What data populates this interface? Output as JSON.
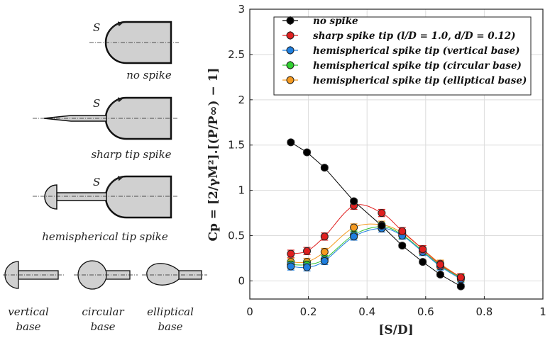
{
  "schematics": {
    "s_label": "S",
    "captions": {
      "no_spike": "no spike",
      "sharp": "sharp tip spike",
      "hemi": "hemispherical tip spike",
      "vertical": [
        "vertical",
        "base"
      ],
      "circular": [
        "circular",
        "base"
      ],
      "elliptical": [
        "elliptical",
        "base"
      ]
    },
    "fill_color": "#d0d0d0"
  },
  "chart_data": {
    "type": "scatter",
    "xlabel": "[S/D]",
    "ylabel": "Cp = [2/γM²].[(P/P∞) − 1]",
    "xlim": [
      0,
      1
    ],
    "ylim": [
      -0.2,
      3
    ],
    "xticks": [
      "0",
      "0.2",
      "0.4",
      "0.6",
      "0.8",
      "1"
    ],
    "yticks": [
      "0",
      "0.5",
      "1",
      "1.5",
      "2",
      "2.5",
      "3"
    ],
    "grid": true,
    "legend_position": "top-right",
    "series": [
      {
        "name": "no spike",
        "color": "#000000",
        "curve": "#000000",
        "x": [
          0.14,
          0.195,
          0.255,
          0.355,
          0.45,
          0.52,
          0.59,
          0.65,
          0.72
        ],
        "y": [
          1.53,
          1.42,
          1.25,
          0.88,
          0.61,
          0.39,
          0.21,
          0.07,
          -0.06
        ],
        "err": 0.02
      },
      {
        "name": "sharp spike tip (l/D = 1.0, d/D = 0.12)",
        "color": "#e02020",
        "curve": "#e02020",
        "x": [
          0.14,
          0.195,
          0.255,
          0.355,
          0.45,
          0.52,
          0.59,
          0.65,
          0.72
        ],
        "y": [
          0.3,
          0.33,
          0.49,
          0.83,
          0.75,
          0.55,
          0.35,
          0.18,
          0.04
        ],
        "err": 0.04
      },
      {
        "name": "hemispherical spike tip (vertical base)",
        "color": "#1e7fe0",
        "curve": "#1e7fe0",
        "x": [
          0.14,
          0.195,
          0.255,
          0.355,
          0.45,
          0.52,
          0.59,
          0.65,
          0.72
        ],
        "y": [
          0.16,
          0.15,
          0.22,
          0.49,
          0.58,
          0.5,
          0.32,
          0.16,
          0.02
        ],
        "err": 0.04
      },
      {
        "name": "hemispherical spike tip (circular base)",
        "color": "#30d030",
        "curve": "#30c030",
        "x": [
          0.14,
          0.195,
          0.255,
          0.355,
          0.45,
          0.52,
          0.59,
          0.65,
          0.72
        ],
        "y": [
          0.18,
          0.18,
          0.24,
          0.51,
          0.6,
          0.51,
          0.33,
          0.17,
          0.03
        ],
        "err": 0.04
      },
      {
        "name": "hemispherical spike tip (elliptical base)",
        "color": "#f59a20",
        "curve": "#f59a20",
        "x": [
          0.14,
          0.195,
          0.255,
          0.355,
          0.45,
          0.52,
          0.59,
          0.65,
          0.72
        ],
        "y": [
          0.21,
          0.21,
          0.32,
          0.59,
          0.62,
          0.53,
          0.35,
          0.19,
          0.04
        ],
        "err": 0.04
      }
    ]
  }
}
